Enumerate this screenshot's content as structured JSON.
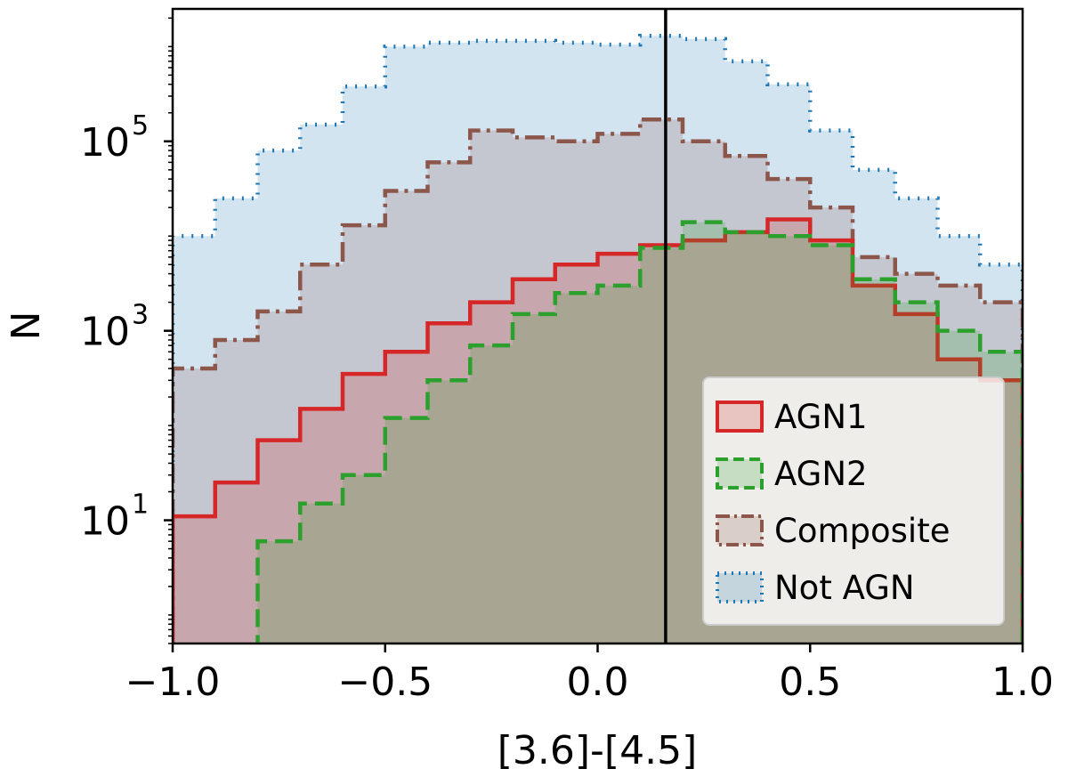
{
  "chart_data": {
    "type": "histogram",
    "title": "",
    "xlabel": "[3.6]-[4.5]",
    "ylabel": "N",
    "xlim": [
      -1.0,
      1.0
    ],
    "ylim": [
      0.5,
      2500000
    ],
    "yscale": "log",
    "grid": false,
    "legend_position": "bottom-right",
    "bin_edges": [
      -1.0,
      -0.9,
      -0.8,
      -0.7,
      -0.6,
      -0.5,
      -0.4,
      -0.3,
      -0.2,
      -0.1,
      0.0,
      0.1,
      0.2,
      0.3,
      0.4,
      0.5,
      0.6,
      0.7,
      0.8,
      0.9,
      1.0
    ],
    "vline": {
      "x": 0.16
    },
    "xticks": [
      {
        "value": -1.0,
        "label": "−1.0"
      },
      {
        "value": -0.5,
        "label": "−0.5"
      },
      {
        "value": 0.0,
        "label": "0.0"
      },
      {
        "value": 0.5,
        "label": "0.5"
      },
      {
        "value": 1.0,
        "label": "1.0"
      }
    ],
    "yticks": [
      {
        "value": 10,
        "base": "10",
        "exp": "1"
      },
      {
        "value": 1000,
        "base": "10",
        "exp": "3"
      },
      {
        "value": 100000,
        "base": "10",
        "exp": "5"
      }
    ],
    "series": [
      {
        "name": "Not AGN",
        "values": [
          10000,
          25000,
          80000,
          150000,
          380000,
          1000000,
          1100000,
          1150000,
          1150000,
          1100000,
          1050000,
          1300000,
          1200000,
          700000,
          400000,
          130000,
          50000,
          25000,
          10000,
          5000
        ],
        "line_color": "#1f77b4",
        "fill_color": "rgba(31,119,180,0.2)",
        "dash": "2,9"
      },
      {
        "name": "Composite",
        "values": [
          400,
          800,
          1600,
          5000,
          13000,
          30000,
          60000,
          130000,
          110000,
          100000,
          120000,
          170000,
          100000,
          70000,
          40000,
          20000,
          6000,
          4000,
          3000,
          2000
        ],
        "line_color": "#8c564b",
        "fill_color": "rgba(140,86,75,0.2)",
        "dash": "22,7,4,7"
      },
      {
        "name": "AGN1",
        "values": [
          11,
          25,
          70,
          150,
          350,
          600,
          1200,
          2000,
          3500,
          5000,
          6500,
          8000,
          9000,
          11000,
          15000,
          9000,
          3000,
          1500,
          500,
          300
        ],
        "line_color": "#d62728",
        "fill_color": "rgba(214,39,40,0.2)",
        "dash": ""
      },
      {
        "name": "AGN2",
        "values": [
          0,
          0,
          6,
          15,
          30,
          120,
          300,
          700,
          1500,
          2500,
          3000,
          7500,
          14000,
          11000,
          10000,
          8000,
          3500,
          2000,
          1000,
          600
        ],
        "line_color": "#2ca02c",
        "fill_color": "rgba(44,160,44,0.2)",
        "dash": "20,9"
      }
    ],
    "legend_order": [
      "AGN1",
      "AGN2",
      "Composite",
      "Not AGN"
    ]
  }
}
